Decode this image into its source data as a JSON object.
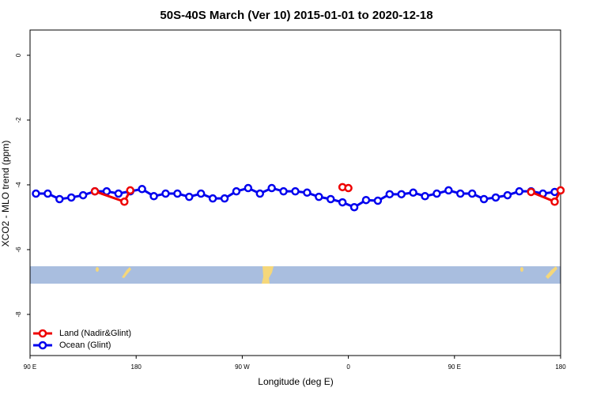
{
  "chart_data": {
    "type": "line",
    "title": "50S-40S March (Ver 10)   2015-01-01 to 2020-12-18",
    "xlabel": "Longitude (deg E)",
    "ylabel": "XCO2 - MLO trend (ppm)",
    "xlim": [
      90,
      540
    ],
    "ylim": [
      -9.27,
      0.78
    ],
    "xticks": [
      {
        "value": 90,
        "label": "90 E"
      },
      {
        "value": 180,
        "label": "180"
      },
      {
        "value": 270,
        "label": "90 W"
      },
      {
        "value": 360,
        "label": "0"
      },
      {
        "value": 450,
        "label": "90 E"
      },
      {
        "value": 540,
        "label": "180"
      }
    ],
    "yticks": [
      0,
      -2,
      -4,
      -6,
      -8
    ],
    "legend": "bottom-left",
    "series": [
      {
        "name": "Ocean (Glint)",
        "color": "#0000ee",
        "x": [
          95,
          105,
          115,
          125,
          135,
          145,
          155,
          165,
          175,
          185,
          195,
          205,
          215,
          225,
          235,
          245,
          255,
          265,
          275,
          285,
          295,
          305,
          315,
          325,
          335,
          345,
          355,
          365,
          375,
          385,
          395,
          405,
          415,
          425,
          435,
          445,
          455,
          465,
          475,
          485,
          495,
          505,
          515,
          525,
          535
        ],
        "values": [
          -4.27,
          -4.27,
          -4.44,
          -4.39,
          -4.32,
          -4.2,
          -4.2,
          -4.27,
          -4.2,
          -4.13,
          -4.35,
          -4.27,
          -4.27,
          -4.37,
          -4.27,
          -4.42,
          -4.42,
          -4.2,
          -4.1,
          -4.27,
          -4.1,
          -4.2,
          -4.2,
          -4.24,
          -4.37,
          -4.44,
          -4.54,
          -4.69,
          -4.47,
          -4.49,
          -4.29,
          -4.29,
          -4.24,
          -4.35,
          -4.27,
          -4.17,
          -4.27,
          -4.27,
          -4.44,
          -4.39,
          -4.32,
          -4.2,
          -4.2,
          -4.27,
          -4.22
        ]
      },
      {
        "name": "Land (Nadir&Glint)",
        "color": "#ee0000",
        "x": [
          145,
          170,
          175,
          265,
          355,
          360,
          475,
          515,
          535,
          540
        ],
        "values": [
          -4.2,
          -4.52,
          -4.17,
          null,
          -4.07,
          -4.1,
          null,
          -4.22,
          -4.52,
          -4.17
        ]
      }
    ]
  }
}
